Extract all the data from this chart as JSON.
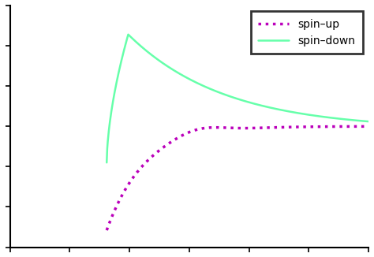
{
  "spin_up_color": "#BB00BB",
  "spin_down_color": "#66FFAA",
  "background_color": "#FFFFFF",
  "legend_label_up": "spin–up",
  "legend_label_down": "spin–down",
  "figsize": [
    4.74,
    3.26
  ],
  "dpi": 100
}
